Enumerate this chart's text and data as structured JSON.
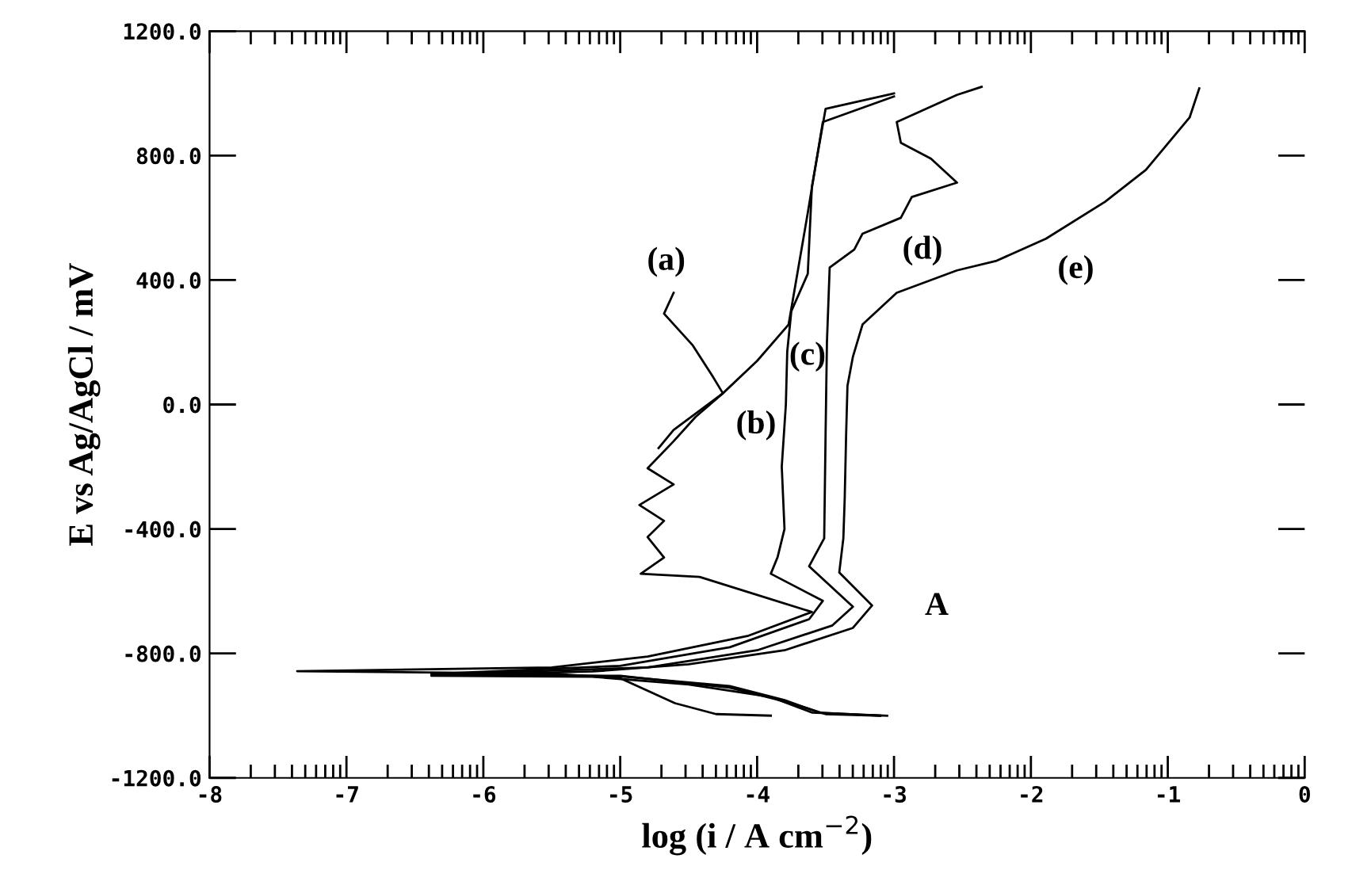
{
  "chart_data": {
    "type": "line",
    "xlabel": "log (i / A cm$^{−2}$)",
    "ylabel": "E vs Ag/AgCl / mV",
    "xlim": [
      -8,
      0
    ],
    "xticks": [
      -8,
      -7,
      -6,
      -5,
      -4,
      -3,
      -2,
      -1,
      0
    ],
    "ylim": [
      -1200,
      1200
    ],
    "yticks": [
      {
        "value": -1200,
        "label": "-1200.0"
      },
      {
        "value": -800,
        "label": "-800.0"
      },
      {
        "value": -400,
        "label": "-400.0"
      },
      {
        "value": 0,
        "label": "0.0"
      },
      {
        "value": 400,
        "label": "400.0"
      },
      {
        "value": 800,
        "label": "800.0"
      },
      {
        "value": 1200,
        "label": "1200.0"
      }
    ],
    "grid": false,
    "legend": false,
    "marker": "none",
    "line_style": "solid",
    "series": [
      {
        "color": "#000000",
        "x": [
          -4.61,
          -4.68,
          -4.47,
          -4.32,
          -4.25,
          -4.45,
          -4.61,
          -4.8,
          -4.61,
          -4.86,
          -4.68,
          -4.8,
          -4.68,
          -4.85,
          -4.42,
          -3.6,
          -4.07,
          -4.8,
          -5.5,
          -7.36,
          -5.5,
          -5.0,
          -4.6,
          -4.3,
          -3.9
        ],
        "values": [
          359,
          292,
          190,
          87,
          36,
          -40,
          -118,
          -205,
          -257,
          -323,
          -374,
          -426,
          -492,
          -544,
          -554,
          -667,
          -744,
          -810,
          -845,
          -857,
          -865,
          -880,
          -960,
          -995,
          -1000
        ]
      },
      {
        "color": "#000000",
        "x": [
          -3.0,
          -3.52,
          -3.63,
          -3.77,
          -4.0,
          -4.25,
          -4.61,
          -4.72
        ],
        "values": [
          990,
          908,
          616,
          257,
          140,
          36,
          -82,
          -140
        ]
      },
      {
        "color": "#000000",
        "x": [
          -3.0,
          -3.5,
          -3.6,
          -3.63,
          -3.75,
          -3.78,
          -3.79,
          -3.82,
          -3.8,
          -3.85,
          -3.9,
          -3.52,
          -3.62,
          -4.2,
          -5.0,
          -6.38,
          -5.0,
          -4.2,
          -3.8,
          -3.55,
          -3.1
        ],
        "values": [
          1000,
          950,
          700,
          420,
          300,
          170,
          0,
          -200,
          -400,
          -490,
          -544,
          -631,
          -690,
          -780,
          -840,
          -866,
          -874,
          -905,
          -950,
          -990,
          -1000
        ]
      },
      {
        "color": "#000000",
        "x": [
          -2.36,
          -2.54,
          -2.98,
          -2.95,
          -2.73,
          -2.54,
          -2.87,
          -2.95,
          -3.23,
          -3.29,
          -3.47,
          -3.49,
          -3.5,
          -3.51,
          -3.62,
          -3.3,
          -3.45,
          -4.0,
          -4.8,
          -6.38,
          -5.0,
          -4.2,
          -3.75,
          -3.5,
          -3.1
        ],
        "values": [
          1021,
          995,
          908,
          841,
          790,
          713,
          667,
          600,
          549,
          498,
          440,
          200,
          -100,
          -430,
          -520,
          -650,
          -710,
          -790,
          -845,
          -868,
          -872,
          -910,
          -960,
          -995,
          -1000
        ]
      },
      {
        "color": "#000000",
        "x": [
          -0.77,
          -0.84,
          -1.16,
          -1.46,
          -1.89,
          -2.25,
          -2.54,
          -2.98,
          -3.23,
          -3.3,
          -3.34,
          -3.35,
          -3.36,
          -3.37,
          -3.4,
          -3.16,
          -3.3,
          -3.8,
          -4.5,
          -5.2,
          -6.38,
          -5.2,
          -4.5,
          -3.9,
          -3.6,
          -3.05
        ],
        "values": [
          1016,
          923,
          754,
          651,
          533,
          462,
          431,
          359,
          257,
          154,
          60,
          -100,
          -300,
          -430,
          -540,
          -646,
          -718,
          -790,
          -835,
          -858,
          -872,
          -875,
          -900,
          -940,
          -990,
          -1000
        ]
      }
    ],
    "annotations": [
      "(a)",
      "(b)",
      "(c)",
      "(d)",
      "(e)",
      "A"
    ]
  }
}
